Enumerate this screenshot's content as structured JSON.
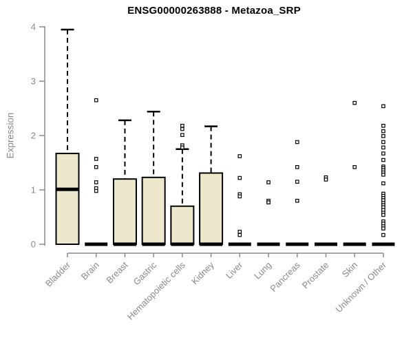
{
  "colors": {
    "box_fill": "#EDE8CB",
    "box_stroke": "#000000",
    "axis": "#8a8a8a",
    "title_text": "#000000",
    "background": "#ffffff"
  },
  "chart_data": {
    "type": "boxplot",
    "title": "ENSG00000263888 - Metazoa_SRP",
    "ylabel": "Expression",
    "xlabel": "",
    "ylim": [
      0,
      4
    ],
    "yticks": [
      0,
      1,
      2,
      3,
      4
    ],
    "grid": false,
    "legend": false,
    "outlier_marker": "open-square",
    "categories": [
      "Bladder",
      "Brain",
      "Breast",
      "Gastric",
      "Hematopoietic cells",
      "Kidney",
      "Liver",
      "Lung",
      "Pancreas",
      "Prostate",
      "Skin",
      "Unknown / Other"
    ],
    "boxes": [
      {
        "label": "Bladder",
        "q1": 0,
        "median": 1.01,
        "q3": 1.67,
        "whisker_low": 0,
        "whisker_high": 3.95,
        "outliers": []
      },
      {
        "label": "Brain",
        "q1": 0,
        "median": 0,
        "q3": 0,
        "whisker_low": 0,
        "whisker_high": 0,
        "outliers": [
          2.65,
          1.57,
          1.42,
          1.14,
          1.03,
          0.98
        ]
      },
      {
        "label": "Breast",
        "q1": 0,
        "median": 0,
        "q3": 1.2,
        "whisker_low": 0,
        "whisker_high": 2.28,
        "outliers": []
      },
      {
        "label": "Gastric",
        "q1": 0,
        "median": 0,
        "q3": 1.23,
        "whisker_low": 0,
        "whisker_high": 2.44,
        "outliers": []
      },
      {
        "label": "Hematopoietic cells",
        "q1": 0,
        "median": 0,
        "q3": 0.7,
        "whisker_low": 0,
        "whisker_high": 1.75,
        "outliers": [
          2.18,
          2.12,
          2.01,
          1.82,
          1.78
        ]
      },
      {
        "label": "Kidney",
        "q1": 0,
        "median": 0,
        "q3": 1.31,
        "whisker_low": 0,
        "whisker_high": 2.17,
        "outliers": []
      },
      {
        "label": "Liver",
        "q1": 0,
        "median": 0,
        "q3": 0,
        "whisker_low": 0,
        "whisker_high": 0,
        "outliers": [
          1.62,
          1.22,
          0.92,
          0.88,
          0.23,
          0.17
        ]
      },
      {
        "label": "Lung",
        "q1": 0,
        "median": 0,
        "q3": 0,
        "whisker_low": 0,
        "whisker_high": 0,
        "outliers": [
          1.14,
          0.8,
          0.77
        ]
      },
      {
        "label": "Pancreas",
        "q1": 0,
        "median": 0,
        "q3": 0,
        "whisker_low": 0,
        "whisker_high": 0,
        "outliers": [
          1.88,
          1.42,
          1.15,
          0.8
        ]
      },
      {
        "label": "Prostate",
        "q1": 0,
        "median": 0,
        "q3": 0,
        "whisker_low": 0,
        "whisker_high": 0,
        "outliers": [
          1.23,
          1.19
        ]
      },
      {
        "label": "Skin",
        "q1": 0,
        "median": 0,
        "q3": 0,
        "whisker_low": 0,
        "whisker_high": 0,
        "outliers": [
          2.6,
          1.42
        ]
      },
      {
        "label": "Unknown / Other",
        "q1": 0,
        "median": 0,
        "q3": 0,
        "whisker_low": 0,
        "whisker_high": 0,
        "outliers": [
          2.54,
          2.18,
          2.08,
          1.99,
          1.88,
          1.78,
          1.67,
          1.55,
          1.43,
          1.4,
          1.36,
          1.32,
          1.28,
          1.12,
          0.93,
          0.89,
          0.85,
          0.81,
          0.76,
          0.72,
          0.68,
          0.63,
          0.58,
          0.54,
          0.42,
          0.38,
          0.33,
          0.29,
          0.17
        ]
      }
    ]
  }
}
